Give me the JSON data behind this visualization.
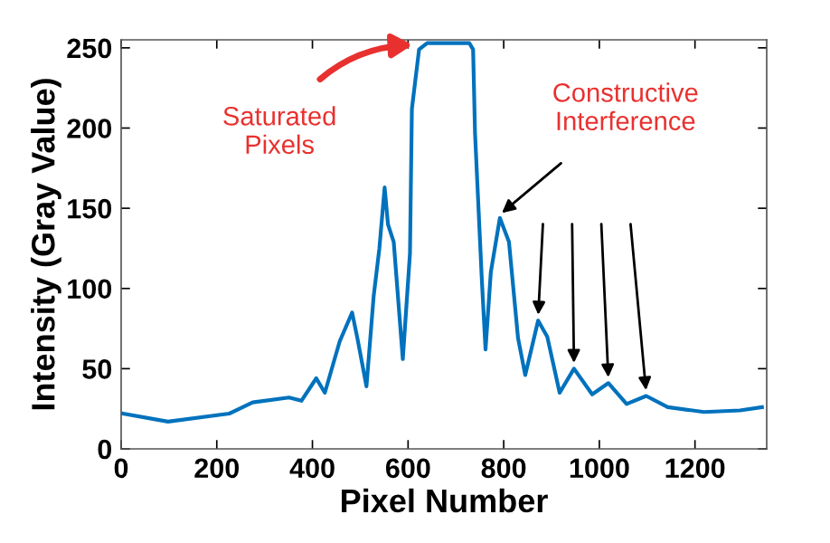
{
  "chart_data": {
    "type": "line",
    "xlabel": "Pixel Number",
    "ylabel": "Intensity (Gray Value)",
    "x": [
      4,
      98,
      226,
      275,
      351,
      377,
      408,
      426,
      457,
      483,
      494,
      513,
      528,
      540,
      551,
      558,
      570,
      589,
      604,
      608,
      623,
      640,
      728,
      736,
      740,
      754,
      762,
      773,
      792,
      811,
      830,
      845,
      872,
      891,
      917,
      947,
      985,
      1019,
      1057,
      1098,
      1143,
      1219,
      1294,
      1340
    ],
    "series": [
      {
        "color": "#0072bd",
        "values": [
          22,
          17,
          22,
          29,
          32,
          30,
          44,
          35,
          67,
          85,
          69,
          39,
          95,
          125,
          163,
          140,
          129,
          56,
          122,
          212,
          249,
          253,
          253,
          249,
          197,
          107,
          62,
          110,
          144,
          129,
          69,
          46,
          80,
          70,
          35,
          50,
          34,
          41,
          28,
          33,
          26,
          23,
          24,
          26
        ]
      }
    ],
    "xlim": [
      0,
      1350
    ],
    "ylim": [
      0,
      255
    ],
    "xticks": [
      0,
      200,
      400,
      600,
      800,
      1000,
      1200
    ],
    "yticks": [
      0,
      50,
      100,
      150,
      200,
      250
    ],
    "grid": false,
    "legend": false,
    "marker": "none",
    "line_style": "solid",
    "annotations": [
      {
        "text": "Saturated\nPixels",
        "x": 620,
        "y": 252
      },
      {
        "text": "Constructive\nInterference",
        "x": 792,
        "y": 146
      }
    ]
  }
}
